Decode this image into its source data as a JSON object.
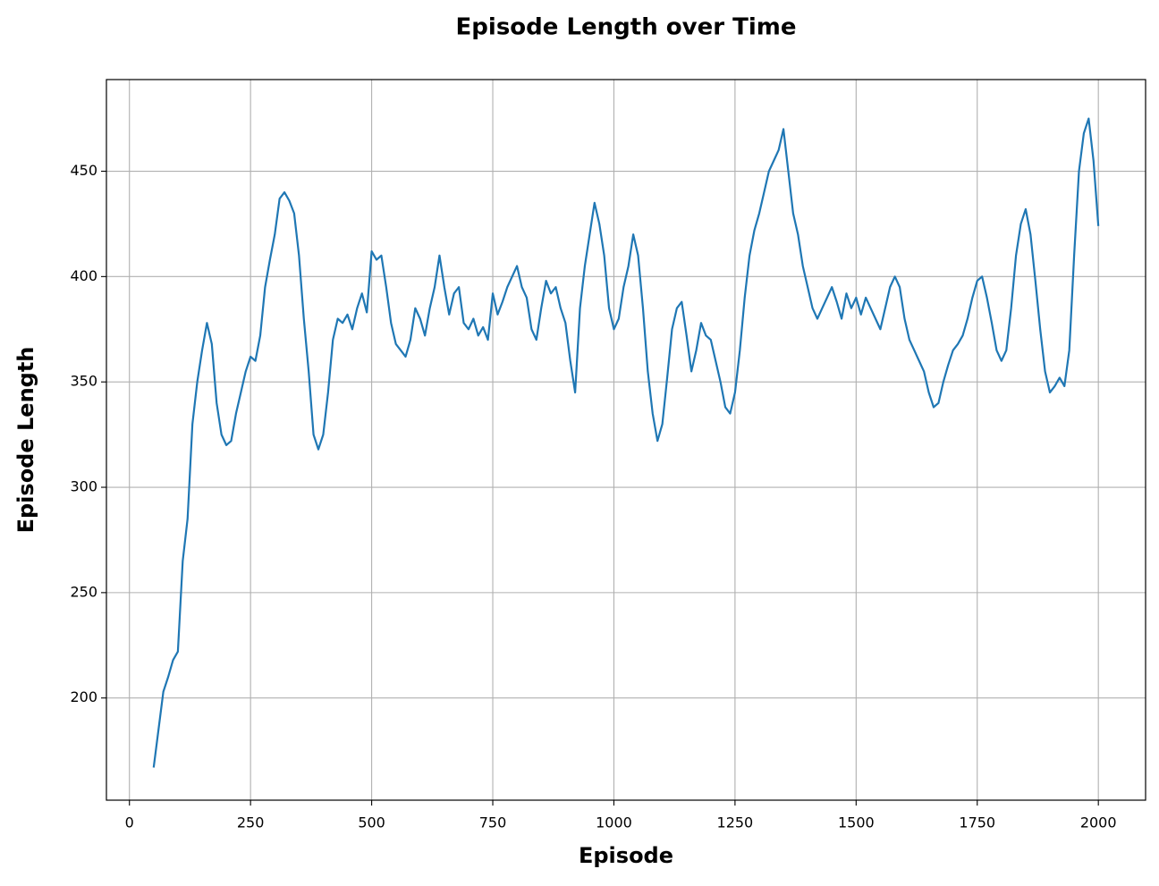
{
  "chart_data": {
    "type": "line",
    "title": "Episode Length over Time",
    "x_label": "Episode",
    "y_label": "Episode Length",
    "color": "#1f77b4",
    "grid": true,
    "xlim": [
      -47.5,
      2097.5
    ],
    "xticks": [
      0,
      250,
      500,
      750,
      1000,
      1250,
      1500,
      1750,
      2000
    ],
    "ylim": [
      151.5,
      493.5
    ],
    "yticks": [
      200,
      250,
      300,
      350,
      400,
      450
    ],
    "x": [
      50,
      60,
      70,
      80,
      90,
      100,
      110,
      120,
      130,
      140,
      150,
      160,
      170,
      180,
      190,
      200,
      210,
      220,
      230,
      240,
      250,
      260,
      270,
      280,
      290,
      300,
      310,
      320,
      330,
      340,
      350,
      360,
      370,
      380,
      390,
      400,
      410,
      420,
      430,
      440,
      450,
      460,
      470,
      480,
      490,
      500,
      510,
      520,
      530,
      540,
      550,
      560,
      570,
      580,
      590,
      600,
      610,
      620,
      630,
      640,
      650,
      660,
      670,
      680,
      690,
      700,
      710,
      720,
      730,
      740,
      750,
      760,
      770,
      780,
      790,
      800,
      810,
      820,
      830,
      840,
      850,
      860,
      870,
      880,
      890,
      900,
      910,
      920,
      930,
      940,
      950,
      960,
      970,
      980,
      990,
      1000,
      1010,
      1020,
      1030,
      1040,
      1050,
      1060,
      1070,
      1080,
      1090,
      1100,
      1110,
      1120,
      1130,
      1140,
      1150,
      1160,
      1170,
      1180,
      1190,
      1200,
      1210,
      1220,
      1230,
      1240,
      1250,
      1260,
      1270,
      1280,
      1290,
      1300,
      1310,
      1320,
      1330,
      1340,
      1350,
      1360,
      1370,
      1380,
      1390,
      1400,
      1410,
      1420,
      1430,
      1440,
      1450,
      1460,
      1470,
      1480,
      1490,
      1500,
      1510,
      1520,
      1530,
      1540,
      1550,
      1560,
      1570,
      1580,
      1590,
      1600,
      1610,
      1620,
      1630,
      1640,
      1650,
      1660,
      1670,
      1680,
      1690,
      1700,
      1710,
      1720,
      1730,
      1740,
      1750,
      1760,
      1770,
      1780,
      1790,
      1800,
      1810,
      1820,
      1830,
      1840,
      1850,
      1860,
      1870,
      1880,
      1890,
      1900,
      1910,
      1920,
      1930,
      1940,
      1950,
      1960,
      1970,
      1980,
      1990,
      2000
    ],
    "values": [
      167,
      185,
      203,
      210,
      218,
      222,
      265,
      285,
      330,
      350,
      365,
      378,
      368,
      340,
      325,
      320,
      322,
      335,
      345,
      355,
      362,
      360,
      372,
      395,
      408,
      420,
      437,
      440,
      436,
      430,
      410,
      380,
      355,
      325,
      318,
      325,
      345,
      370,
      380,
      378,
      382,
      375,
      385,
      392,
      383,
      412,
      408,
      410,
      395,
      378,
      368,
      365,
      362,
      370,
      385,
      380,
      372,
      385,
      395,
      410,
      395,
      382,
      392,
      395,
      378,
      375,
      380,
      372,
      376,
      370,
      392,
      382,
      388,
      395,
      400,
      405,
      395,
      390,
      375,
      370,
      385,
      398,
      392,
      395,
      385,
      378,
      360,
      345,
      385,
      405,
      420,
      435,
      425,
      410,
      385,
      375,
      380,
      395,
      405,
      420,
      410,
      385,
      355,
      335,
      322,
      330,
      352,
      375,
      385,
      388,
      372,
      355,
      365,
      378,
      372,
      370,
      360,
      350,
      338,
      335,
      345,
      365,
      390,
      410,
      422,
      430,
      440,
      450,
      455,
      460,
      470,
      450,
      430,
      420,
      405,
      395,
      385,
      380,
      385,
      390,
      395,
      388,
      380,
      392,
      385,
      390,
      382,
      390,
      385,
      380,
      375,
      385,
      395,
      400,
      395,
      380,
      370,
      365,
      360,
      355,
      345,
      338,
      340,
      350,
      358,
      365,
      368,
      372,
      380,
      390,
      398,
      400,
      390,
      378,
      365,
      360,
      365,
      385,
      410,
      425,
      432,
      420,
      398,
      375,
      355,
      345,
      348,
      352,
      348,
      365,
      410,
      450,
      468,
      475,
      455,
      424
    ]
  }
}
